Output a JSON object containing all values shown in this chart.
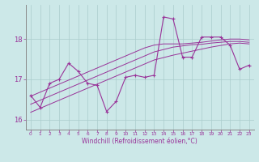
{
  "x": [
    0,
    1,
    2,
    3,
    4,
    5,
    6,
    7,
    8,
    9,
    10,
    11,
    12,
    13,
    14,
    15,
    16,
    17,
    18,
    19,
    20,
    21,
    22,
    23
  ],
  "y_main": [
    16.6,
    16.3,
    16.9,
    17.0,
    17.4,
    17.2,
    16.9,
    16.85,
    16.2,
    16.45,
    17.05,
    17.1,
    17.05,
    17.1,
    18.55,
    18.5,
    17.55,
    17.55,
    18.05,
    18.05,
    18.05,
    17.85,
    17.25,
    17.35
  ],
  "y_trend1": [
    16.58,
    16.68,
    16.78,
    16.88,
    16.98,
    17.08,
    17.18,
    17.28,
    17.38,
    17.48,
    17.58,
    17.68,
    17.78,
    17.85,
    17.88,
    17.88,
    17.88,
    17.9,
    17.92,
    17.95,
    17.98,
    18.0,
    18.0,
    17.98
  ],
  "y_trend2": [
    16.38,
    16.48,
    16.58,
    16.68,
    16.78,
    16.88,
    16.98,
    17.08,
    17.18,
    17.28,
    17.38,
    17.48,
    17.58,
    17.68,
    17.74,
    17.8,
    17.83,
    17.86,
    17.87,
    17.9,
    17.92,
    17.94,
    17.94,
    17.92
  ],
  "y_trend3": [
    16.18,
    16.28,
    16.38,
    16.48,
    16.58,
    16.68,
    16.78,
    16.88,
    16.98,
    17.08,
    17.18,
    17.28,
    17.38,
    17.48,
    17.54,
    17.6,
    17.65,
    17.7,
    17.75,
    17.8,
    17.84,
    17.88,
    17.9,
    17.88
  ],
  "color": "#993399",
  "bg_color": "#cce8e8",
  "grid_color": "#aacccc",
  "xlabel": "Windchill (Refroidissement éolien,°C)",
  "ylabel_ticks": [
    16,
    17,
    18
  ],
  "xlim": [
    -0.5,
    23.5
  ],
  "ylim": [
    15.75,
    18.85
  ]
}
